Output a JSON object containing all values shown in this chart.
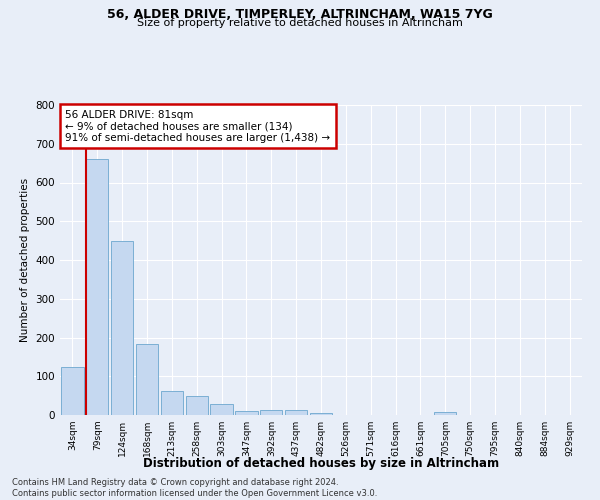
{
  "title1": "56, ALDER DRIVE, TIMPERLEY, ALTRINCHAM, WA15 7YG",
  "title2": "Size of property relative to detached houses in Altrincham",
  "xlabel": "Distribution of detached houses by size in Altrincham",
  "ylabel": "Number of detached properties",
  "categories": [
    "34sqm",
    "79sqm",
    "124sqm",
    "168sqm",
    "213sqm",
    "258sqm",
    "303sqm",
    "347sqm",
    "392sqm",
    "437sqm",
    "482sqm",
    "526sqm",
    "571sqm",
    "616sqm",
    "661sqm",
    "705sqm",
    "750sqm",
    "795sqm",
    "840sqm",
    "884sqm",
    "929sqm"
  ],
  "values": [
    125,
    660,
    450,
    183,
    62,
    48,
    28,
    10,
    13,
    13,
    5,
    0,
    0,
    0,
    0,
    8,
    0,
    0,
    0,
    0,
    0
  ],
  "bar_color": "#c5d8f0",
  "bar_edge_color": "#7bafd4",
  "annotation_text_line1": "56 ALDER DRIVE: 81sqm",
  "annotation_text_line2": "← 9% of detached houses are smaller (134)",
  "annotation_text_line3": "91% of semi-detached houses are larger (1,438) →",
  "annotation_box_color": "#ffffff",
  "annotation_box_edge_color": "#cc0000",
  "red_line_color": "#cc0000",
  "background_color": "#e8eef8",
  "grid_color": "#ffffff",
  "footer_line1": "Contains HM Land Registry data © Crown copyright and database right 2024.",
  "footer_line2": "Contains public sector information licensed under the Open Government Licence v3.0.",
  "ylim": [
    0,
    800
  ],
  "yticks": [
    0,
    100,
    200,
    300,
    400,
    500,
    600,
    700,
    800
  ]
}
